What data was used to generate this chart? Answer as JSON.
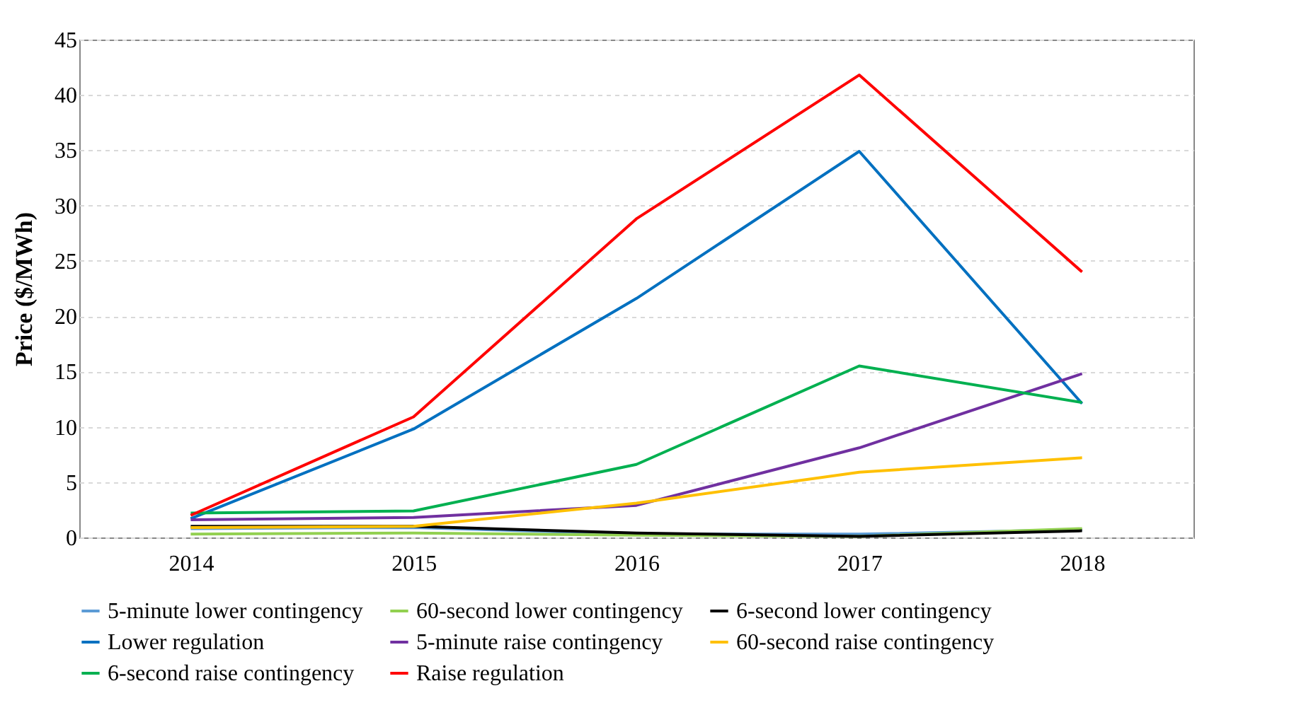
{
  "chart_data": {
    "type": "line",
    "ylabel": "Price ($/MWh)",
    "categories": [
      "2014",
      "2015",
      "2016",
      "2017",
      "2018"
    ],
    "ylim": [
      0,
      45
    ],
    "yticks": [
      0,
      5,
      10,
      15,
      20,
      25,
      30,
      35,
      40,
      45
    ],
    "grid": "y",
    "legend": "bottom",
    "marker": "none",
    "line_style": "solid",
    "series": [
      {
        "name": "5-minute lower contingency",
        "color": "#5b9bd5",
        "values": [
          0.8,
          0.9,
          0.3,
          0.3,
          0.7
        ]
      },
      {
        "name": "60-second lower contingency",
        "color": "#92d050",
        "values": [
          0.3,
          0.4,
          0.2,
          0.1,
          0.8
        ]
      },
      {
        "name": "6-second lower contingency",
        "color": "#000000",
        "values": [
          1.0,
          1.0,
          0.4,
          0.1,
          0.6
        ]
      },
      {
        "name": "Lower regulation",
        "color": "#0070c0",
        "values": [
          1.7,
          9.8,
          21.6,
          34.9,
          12.1
        ]
      },
      {
        "name": "5-minute raise contingency",
        "color": "#7030a0",
        "values": [
          1.6,
          1.8,
          2.9,
          8.1,
          14.8
        ]
      },
      {
        "name": "60-second raise contingency",
        "color": "#ffc000",
        "values": [
          0.9,
          1.0,
          3.1,
          5.9,
          7.2
        ]
      },
      {
        "name": "6-second raise contingency",
        "color": "#00b050",
        "values": [
          2.2,
          2.4,
          6.6,
          15.5,
          12.2
        ]
      },
      {
        "name": "Raise regulation",
        "color": "#ff0000",
        "values": [
          2.0,
          10.9,
          28.8,
          41.8,
          24.0
        ]
      }
    ]
  }
}
